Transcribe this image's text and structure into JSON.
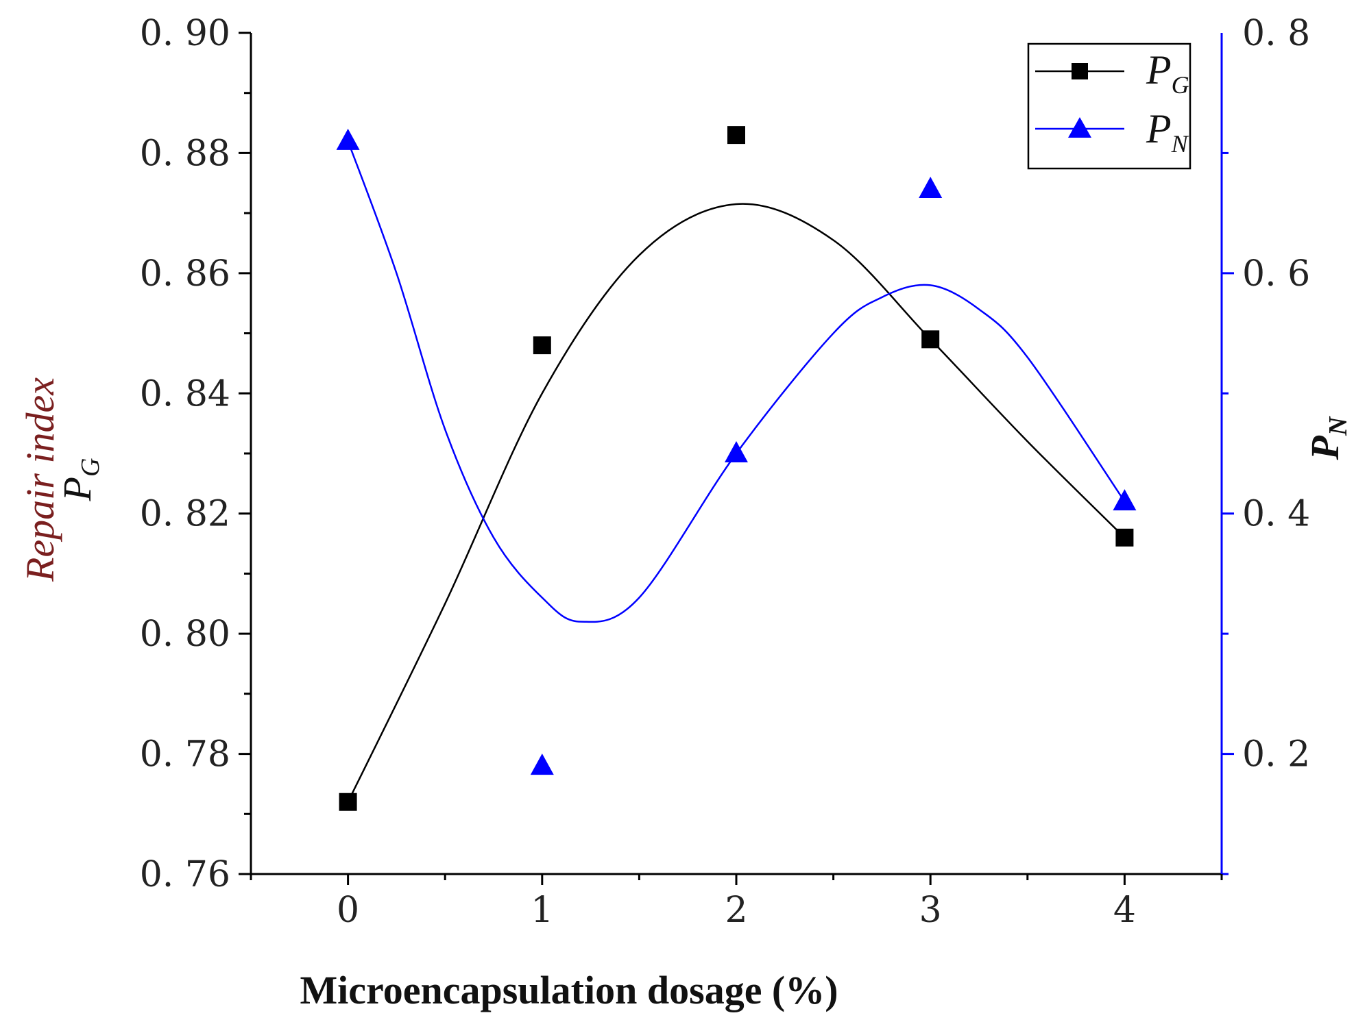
{
  "chart_data": {
    "type": "scatter",
    "title": "",
    "xlabel": "Microencapsulation dosage (%)",
    "ylabel_left_line1": "Repair index",
    "ylabel_left_symbol": "P",
    "ylabel_left_sub": "G",
    "ylabel_right_symbol": "P",
    "ylabel_right_sub": "N",
    "x_ticks": [
      "0",
      "1",
      "2",
      "3",
      "4"
    ],
    "xlim": [
      -0.5,
      4.5
    ],
    "ylim_left": [
      0.76,
      0.9
    ],
    "ylim_right": [
      0.1,
      0.8
    ],
    "y_left_ticks": [
      "0. 76",
      "0. 78",
      "0. 80",
      "0. 82",
      "0. 84",
      "0. 86",
      "0. 88",
      "0. 90"
    ],
    "y_right_ticks": [
      "0. 2",
      "0. 4",
      "0. 6",
      "0. 8"
    ],
    "legend_position": "top-right",
    "series": [
      {
        "name": "P",
        "name_sub": "G",
        "axis": "left",
        "marker": "square",
        "color": "#000000",
        "x": [
          0,
          1,
          2,
          3,
          4
        ],
        "values": [
          0.772,
          0.848,
          0.883,
          0.849,
          0.816
        ],
        "fit_curve": [
          [
            0,
            0.772
          ],
          [
            0.5,
            0.805
          ],
          [
            1,
            0.84
          ],
          [
            1.5,
            0.863
          ],
          [
            2,
            0.8715
          ],
          [
            2.5,
            0.8655
          ],
          [
            3,
            0.849
          ],
          [
            3.5,
            0.832
          ],
          [
            4,
            0.816
          ]
        ]
      },
      {
        "name": "P",
        "name_sub": "N",
        "axis": "right",
        "marker": "triangle",
        "color": "#0000ff",
        "x": [
          0,
          1,
          2,
          3,
          4
        ],
        "values": [
          0.71,
          0.19,
          0.45,
          0.67,
          0.41
        ],
        "fit_curve": [
          [
            0,
            0.71
          ],
          [
            0.25,
            0.6
          ],
          [
            0.5,
            0.47
          ],
          [
            0.75,
            0.38
          ],
          [
            1,
            0.33
          ],
          [
            1.2,
            0.31
          ],
          [
            1.5,
            0.33
          ],
          [
            2,
            0.45
          ],
          [
            2.5,
            0.55
          ],
          [
            2.75,
            0.58
          ],
          [
            3,
            0.59
          ],
          [
            3.25,
            0.57
          ],
          [
            3.5,
            0.53
          ],
          [
            4,
            0.41
          ]
        ]
      }
    ]
  }
}
